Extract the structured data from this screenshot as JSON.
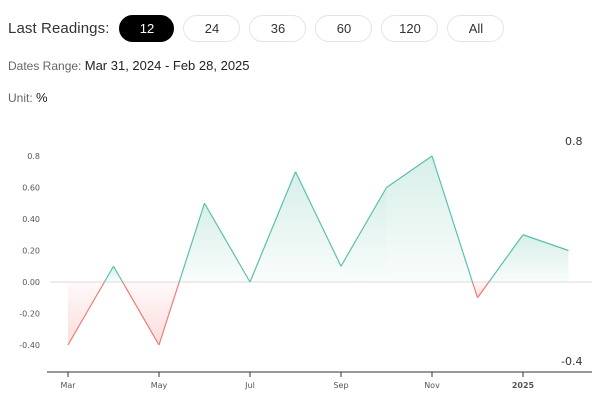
{
  "range_selector": {
    "label": "Last Readings:",
    "options": [
      "12",
      "24",
      "36",
      "60",
      "120",
      "All"
    ],
    "selected": "12"
  },
  "dates_range": {
    "label": "Dates Range:",
    "value": "Mar 31, 2024 - Feb 28, 2025"
  },
  "unit": {
    "label": "Unit:",
    "value": "%"
  },
  "colors": {
    "positive_line": "#5bbfae",
    "negative_line": "#f07a74",
    "positive_fill": "#d8efe9",
    "negative_fill": "#fbdcdc"
  },
  "chart_data": {
    "type": "area",
    "title": "",
    "xlabel": "",
    "ylabel": "",
    "x": [
      "2024-03-31",
      "2024-04-30",
      "2024-05-31",
      "2024-06-30",
      "2024-07-31",
      "2024-08-31",
      "2024-09-30",
      "2024-10-31",
      "2024-11-30",
      "2024-12-31",
      "2025-01-31",
      "2025-02-28"
    ],
    "values": [
      -0.4,
      0.1,
      -0.4,
      0.5,
      0.0,
      0.7,
      0.1,
      0.6,
      0.8,
      -0.1,
      0.3,
      0.2
    ],
    "x_ticks": [
      "Mar",
      "May",
      "Jul",
      "Sep",
      "Nov",
      "2025"
    ],
    "y_ticks": [
      "0.8",
      "0.60",
      "0.40",
      "0.20",
      "0.00",
      "-0.20",
      "-0.40"
    ],
    "ylim": [
      -0.4,
      0.8
    ],
    "max_label": "0.8",
    "min_label": "-0.4",
    "grid": false
  }
}
